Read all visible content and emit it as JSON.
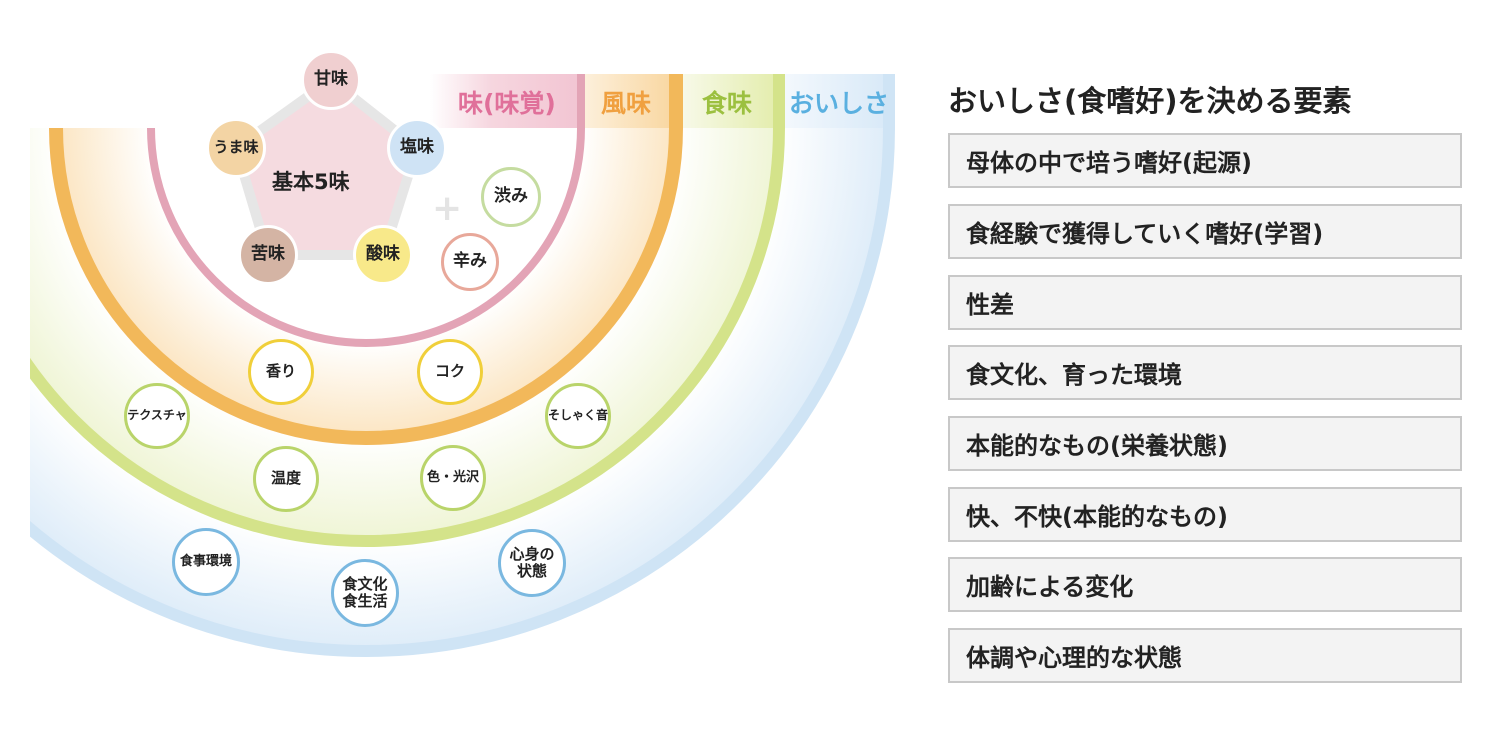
{
  "colors": {
    "taste": "#e3a4b6",
    "flavor": "#f2b85a",
    "palatability": "#d4e38a",
    "deliciousness": "#cfe4f5"
  },
  "headers": {
    "taste": {
      "label": "味(味覚)",
      "color": "#e0709a"
    },
    "flavor": {
      "label": "風味",
      "color": "#f0a040"
    },
    "palatability": {
      "label": "食味",
      "color": "#9cc040"
    },
    "deliciousness": {
      "label": "おいしさ",
      "color": "#5ab0e0"
    }
  },
  "basic_tastes": {
    "center_label": "基本5味",
    "items": [
      {
        "label": "甘味",
        "color": "#f0cfd0"
      },
      {
        "label": "塩味",
        "color": "#cfe3f5"
      },
      {
        "label": "うま味",
        "color": "#f3d4a4"
      },
      {
        "label": "苦味",
        "color": "#d4b4a4"
      },
      {
        "label": "酸味",
        "color": "#f8e98a"
      }
    ]
  },
  "extra_tastes": [
    {
      "label": "渋み",
      "color": "#c5dca0"
    },
    {
      "label": "辛み",
      "color": "#e8a89a"
    }
  ],
  "flavor_items": [
    {
      "label": "香り"
    },
    {
      "label": "コク"
    }
  ],
  "palatability_items": [
    {
      "label": "テクスチャ"
    },
    {
      "label": "そしゃく音"
    },
    {
      "label": "温度"
    },
    {
      "label": "色・光沢"
    }
  ],
  "deliciousness_items": [
    {
      "label": "食事環境"
    },
    {
      "label": "食文化\n食生活"
    },
    {
      "label": "心身の\n状態"
    }
  ],
  "factors": {
    "title": "おいしさ(食嗜好)を決める要素",
    "items": [
      "母体の中で培う嗜好(起源)",
      "食経験で獲得していく嗜好(学習)",
      "性差",
      "食文化、育った環境",
      "本能的なもの(栄養状態)",
      "快、不快(本能的なもの)",
      "加齢による変化",
      "体調や心理的な状態"
    ]
  }
}
